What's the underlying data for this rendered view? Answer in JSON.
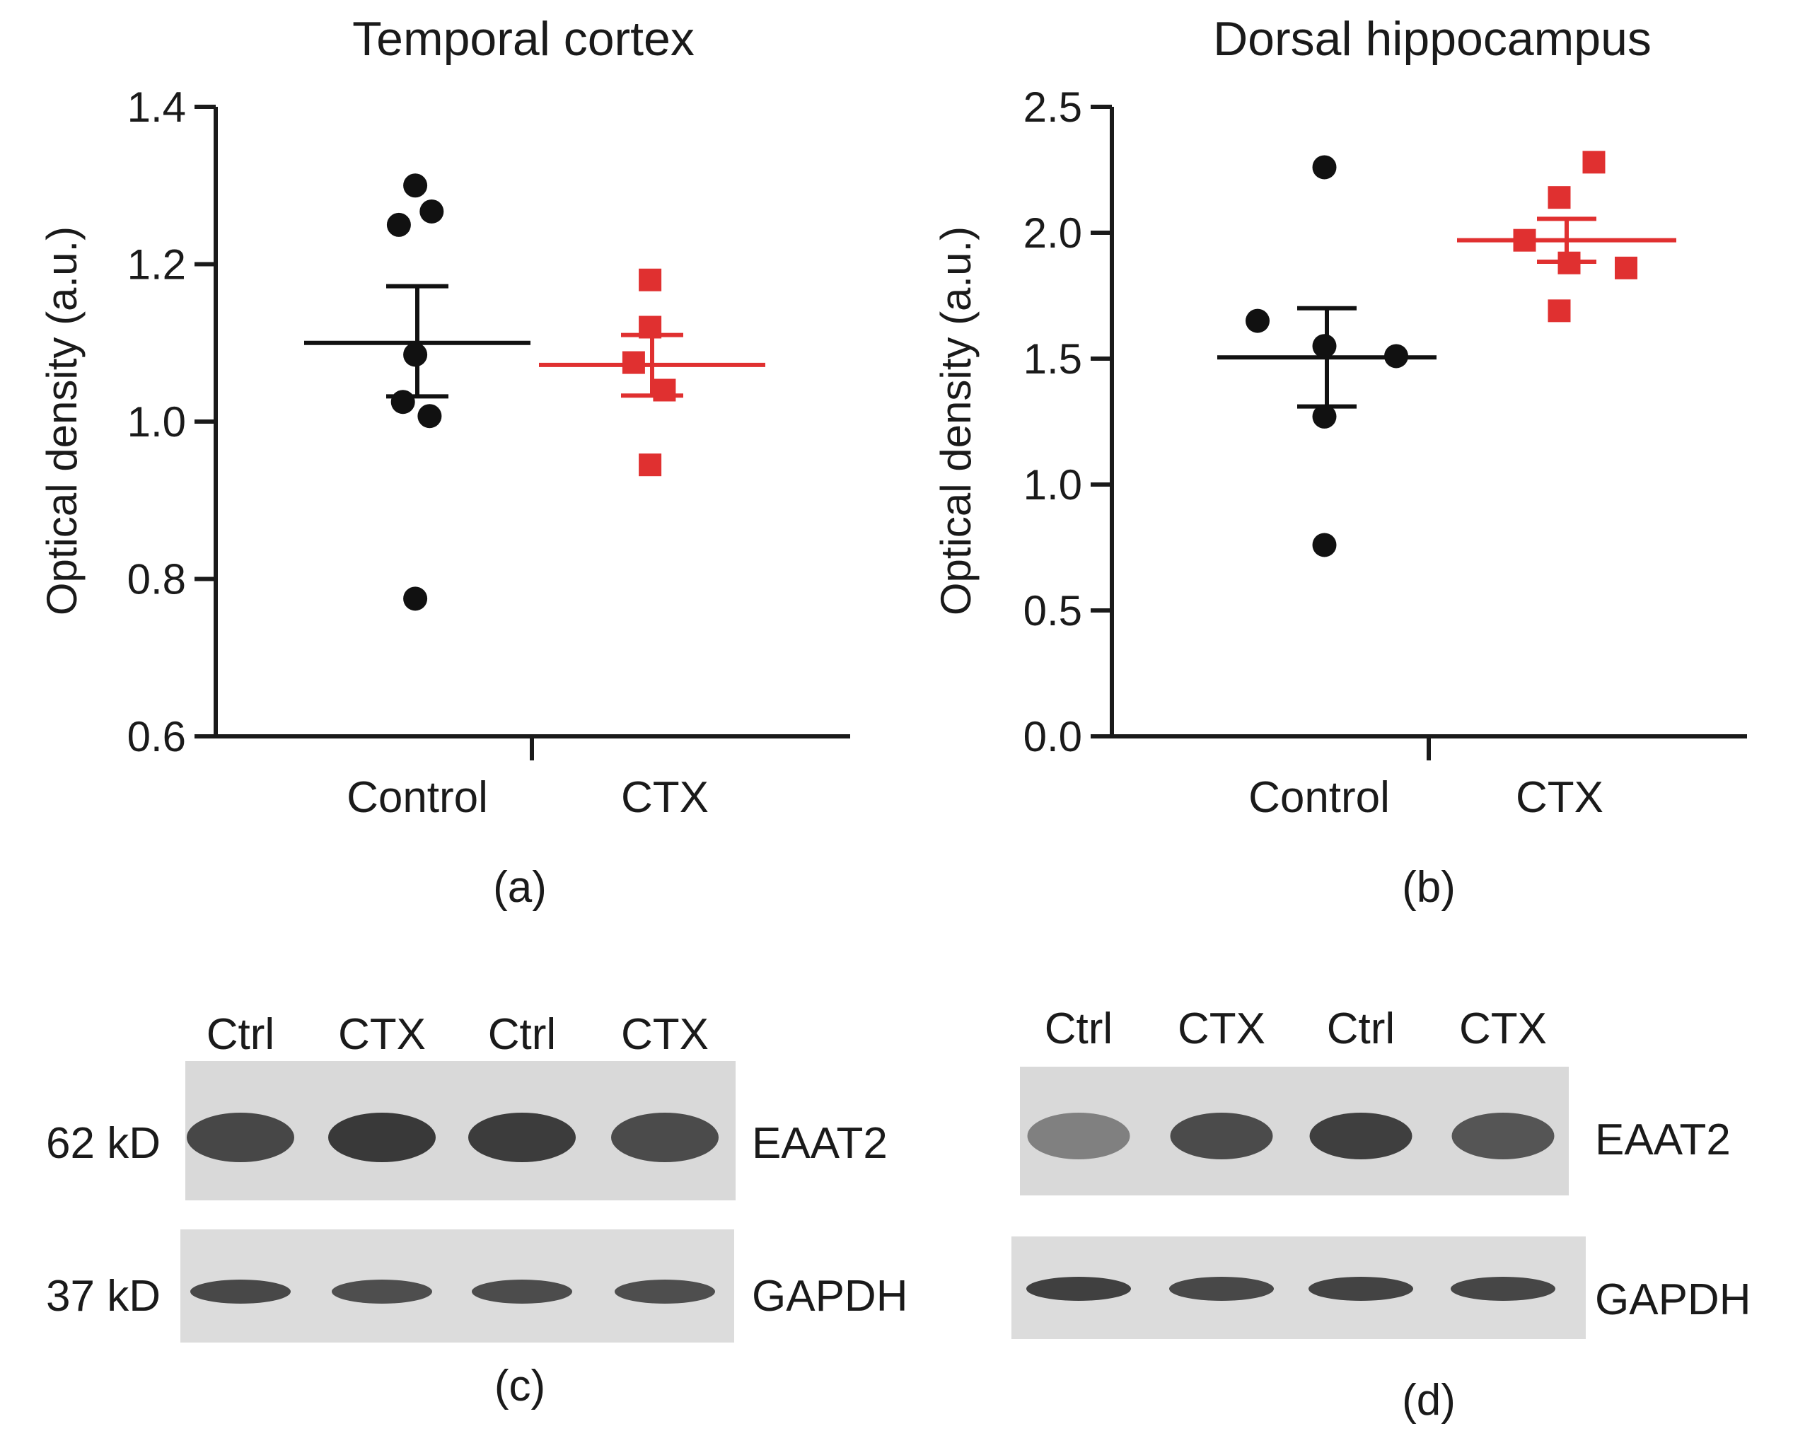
{
  "colors": {
    "control": "#111111",
    "ctx": "#e03030",
    "axis": "#1a1a1a",
    "blot_bg": "#d9d9d9",
    "band": "#3c3c3c"
  },
  "chart_data": [
    {
      "type": "scatter",
      "panel": "(a)",
      "title": "Temporal cortex",
      "ylabel": "Optical density (a.u.)",
      "xlabel": "",
      "ylim": [
        0.6,
        1.4
      ],
      "yticks": [
        "0.6",
        "0.8",
        "1.0",
        "1.2",
        "1.4"
      ],
      "categories": [
        "Control",
        "CTX"
      ],
      "series": [
        {
          "name": "Control",
          "marker": "circle",
          "points": [
            {
              "dx": -0.01,
              "y": 1.3
            },
            {
              "dx": -0.09,
              "y": 1.25
            },
            {
              "dx": 0.07,
              "y": 1.267
            },
            {
              "dx": -0.01,
              "y": 1.085
            },
            {
              "dx": -0.07,
              "y": 1.025
            },
            {
              "dx": 0.06,
              "y": 1.007
            },
            {
              "dx": -0.01,
              "y": 0.775
            }
          ],
          "mean": 1.1,
          "sem_upper": 1.172,
          "sem_lower": 1.032
        },
        {
          "name": "CTX",
          "marker": "square",
          "points": [
            {
              "dx": -0.01,
              "y": 1.18
            },
            {
              "dx": -0.01,
              "y": 1.12
            },
            {
              "dx": -0.09,
              "y": 1.075
            },
            {
              "dx": 0.06,
              "y": 1.04
            },
            {
              "dx": -0.01,
              "y": 0.945
            }
          ],
          "mean": 1.072,
          "sem_upper": 1.11,
          "sem_lower": 1.033
        }
      ]
    },
    {
      "type": "scatter",
      "panel": "(b)",
      "title": "Dorsal hippocampus",
      "ylabel": "Optical density (a.u.)",
      "xlabel": "",
      "ylim": [
        0.0,
        2.5
      ],
      "yticks": [
        "0.0",
        "0.5",
        "1.0",
        "1.5",
        "2.0",
        "2.5"
      ],
      "categories": [
        "Control",
        "CTX"
      ],
      "series": [
        {
          "name": "Control",
          "marker": "circle",
          "points": [
            {
              "dx": -0.01,
              "y": 2.26
            },
            {
              "dx": -0.28,
              "y": 1.65
            },
            {
              "dx": -0.01,
              "y": 1.55
            },
            {
              "dx": 0.28,
              "y": 1.51
            },
            {
              "dx": -0.01,
              "y": 1.27
            },
            {
              "dx": -0.01,
              "y": 0.76
            }
          ],
          "mean": 1.505,
          "sem_upper": 1.7,
          "sem_lower": 1.31
        },
        {
          "name": "CTX",
          "marker": "square",
          "points": [
            {
              "dx": 0.11,
              "y": 2.28
            },
            {
              "dx": -0.03,
              "y": 2.14
            },
            {
              "dx": -0.17,
              "y": 1.97
            },
            {
              "dx": 0.01,
              "y": 1.88
            },
            {
              "dx": 0.24,
              "y": 1.86
            },
            {
              "dx": -0.03,
              "y": 1.69
            }
          ],
          "mean": 1.97,
          "sem_upper": 2.055,
          "sem_lower": 1.885
        }
      ]
    }
  ],
  "blots": [
    {
      "panel": "(c)",
      "lanes": [
        "Ctrl",
        "CTX",
        "Ctrl",
        "CTX"
      ],
      "rows": [
        {
          "size": "62 kD",
          "protein": "EAAT2",
          "intensity": [
            0.85,
            0.95,
            0.92,
            0.82
          ]
        },
        {
          "size": "37 kD",
          "protein": "GAPDH",
          "intensity": [
            0.85,
            0.8,
            0.82,
            0.8
          ]
        }
      ]
    },
    {
      "panel": "(d)",
      "lanes": [
        "Ctrl",
        "CTX",
        "Ctrl",
        "CTX"
      ],
      "rows": [
        {
          "protein": "EAAT2",
          "intensity": [
            0.45,
            0.82,
            0.9,
            0.75
          ]
        },
        {
          "protein": "GAPDH",
          "intensity": [
            0.9,
            0.85,
            0.88,
            0.86
          ]
        }
      ]
    }
  ]
}
